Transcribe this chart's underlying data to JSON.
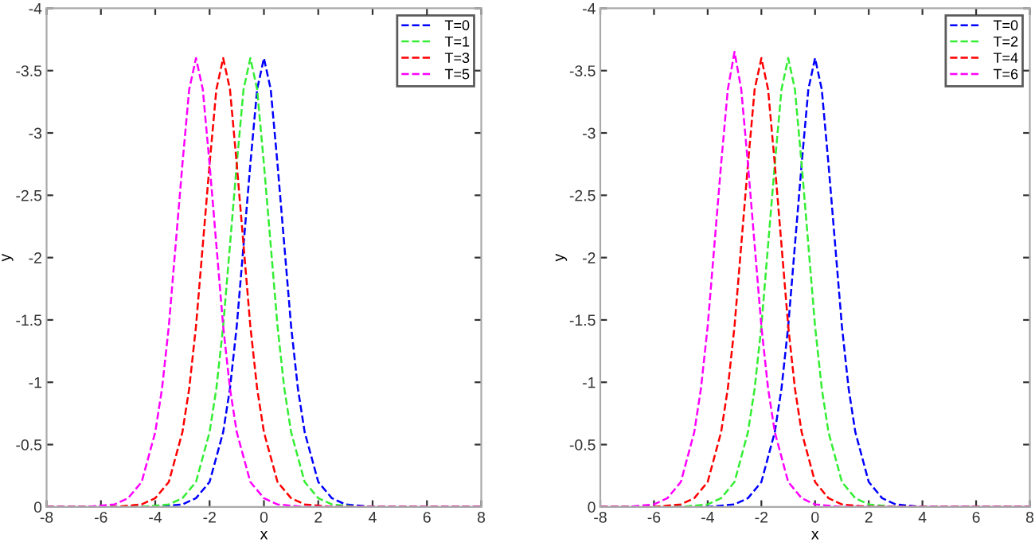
{
  "chart_data": [
    {
      "type": "line",
      "xlabel": "x",
      "ylabel": "y",
      "xlim": [
        -8,
        8
      ],
      "ylim": [
        0,
        -4
      ],
      "xticks": [
        -8,
        -6,
        -4,
        -2,
        0,
        2,
        4,
        6,
        8
      ],
      "yticks": [
        0,
        -0.5,
        -1,
        -1.5,
        -2,
        -2.5,
        -3,
        -3.5,
        -4
      ],
      "legend": "top right",
      "line_style": "dashed",
      "grid": false,
      "series": [
        {
          "name": "T=0",
          "color": "#0000ff",
          "x": [
            -8,
            -4,
            -3,
            -2.5,
            -2,
            -1.5,
            -1.25,
            -1,
            -0.75,
            -0.5,
            -0.25,
            0,
            0.25,
            0.5,
            0.75,
            1,
            1.25,
            1.5,
            2,
            2.5,
            3,
            4,
            8
          ],
          "values": [
            0,
            0,
            -0.02,
            -0.07,
            -0.2,
            -0.6,
            -0.95,
            -1.45,
            -2.1,
            -2.75,
            -3.35,
            -3.6,
            -3.35,
            -2.75,
            -2.1,
            -1.45,
            -0.95,
            -0.6,
            -0.2,
            -0.07,
            -0.02,
            0,
            0
          ]
        },
        {
          "name": "T=1",
          "color": "#33ee33",
          "x": [
            -8,
            -4.5,
            -3.5,
            -3,
            -2.5,
            -2,
            -1.75,
            -1.5,
            -1.25,
            -1,
            -0.75,
            -0.5,
            -0.25,
            0,
            0.25,
            0.5,
            0.75,
            1,
            1.5,
            2,
            2.5,
            3.5,
            8
          ],
          "values": [
            0,
            0,
            -0.02,
            -0.07,
            -0.2,
            -0.6,
            -0.95,
            -1.45,
            -2.1,
            -2.75,
            -3.35,
            -3.6,
            -3.35,
            -2.75,
            -2.1,
            -1.45,
            -0.95,
            -0.6,
            -0.2,
            -0.07,
            -0.02,
            0,
            0
          ]
        },
        {
          "name": "T=3",
          "color": "#ff0000",
          "x": [
            -8,
            -5.5,
            -4.5,
            -4,
            -3.5,
            -3,
            -2.75,
            -2.5,
            -2.25,
            -2,
            -1.75,
            -1.5,
            -1.25,
            -1,
            -0.75,
            -0.5,
            -0.25,
            0,
            0.5,
            1,
            1.5,
            2.5,
            8
          ],
          "values": [
            0,
            0,
            -0.02,
            -0.07,
            -0.2,
            -0.6,
            -0.95,
            -1.45,
            -2.1,
            -2.75,
            -3.35,
            -3.6,
            -3.35,
            -2.75,
            -2.1,
            -1.45,
            -0.95,
            -0.6,
            -0.2,
            -0.07,
            -0.02,
            0,
            0
          ]
        },
        {
          "name": "T=5",
          "color": "#ff00ff",
          "x": [
            -8,
            -6.5,
            -5.5,
            -5,
            -4.5,
            -4,
            -3.75,
            -3.5,
            -3.25,
            -3,
            -2.75,
            -2.5,
            -2.25,
            -2,
            -1.75,
            -1.5,
            -1.25,
            -1,
            -0.5,
            0,
            0.5,
            1.5,
            8
          ],
          "values": [
            0,
            0,
            -0.02,
            -0.07,
            -0.2,
            -0.6,
            -0.95,
            -1.45,
            -2.1,
            -2.75,
            -3.35,
            -3.6,
            -3.35,
            -2.75,
            -2.1,
            -1.45,
            -0.95,
            -0.6,
            -0.2,
            -0.07,
            -0.02,
            0,
            0
          ]
        }
      ]
    },
    {
      "type": "line",
      "xlabel": "x",
      "ylabel": "y",
      "xlim": [
        -8,
        8
      ],
      "ylim": [
        0,
        -4
      ],
      "xticks": [
        -8,
        -6,
        -4,
        -2,
        0,
        2,
        4,
        6,
        8
      ],
      "yticks": [
        0,
        -0.5,
        -1,
        -1.5,
        -2,
        -2.5,
        -3,
        -3.5,
        -4
      ],
      "legend": "top right",
      "line_style": "dashed",
      "grid": false,
      "series": [
        {
          "name": "T=0",
          "color": "#0000ff",
          "x": [
            -8,
            -4,
            -3,
            -2.5,
            -2,
            -1.5,
            -1.25,
            -1,
            -0.75,
            -0.5,
            -0.25,
            0,
            0.25,
            0.5,
            0.75,
            1,
            1.25,
            1.5,
            2,
            2.5,
            3,
            4,
            8
          ],
          "values": [
            0,
            0,
            -0.02,
            -0.07,
            -0.2,
            -0.6,
            -0.95,
            -1.45,
            -2.1,
            -2.75,
            -3.35,
            -3.6,
            -3.35,
            -2.75,
            -2.1,
            -1.45,
            -0.95,
            -0.6,
            -0.2,
            -0.07,
            -0.02,
            0,
            0
          ]
        },
        {
          "name": "T=2",
          "color": "#33ee33",
          "x": [
            -8,
            -5,
            -4,
            -3.5,
            -3,
            -2.5,
            -2.25,
            -2,
            -1.75,
            -1.5,
            -1.25,
            -1,
            -0.75,
            -0.5,
            -0.25,
            0,
            0.25,
            0.5,
            1,
            1.5,
            2,
            3,
            8
          ],
          "values": [
            0,
            0,
            -0.02,
            -0.07,
            -0.2,
            -0.6,
            -0.95,
            -1.45,
            -2.1,
            -2.75,
            -3.35,
            -3.6,
            -3.35,
            -2.75,
            -2.1,
            -1.45,
            -0.95,
            -0.6,
            -0.2,
            -0.07,
            -0.02,
            0,
            0
          ]
        },
        {
          "name": "T=4",
          "color": "#ff0000",
          "x": [
            -8,
            -6,
            -5,
            -4.5,
            -4,
            -3.5,
            -3.25,
            -3,
            -2.75,
            -2.5,
            -2.25,
            -2,
            -1.75,
            -1.5,
            -1.25,
            -1,
            -0.75,
            -0.5,
            0,
            0.5,
            1,
            2,
            8
          ],
          "values": [
            0,
            0,
            -0.02,
            -0.07,
            -0.2,
            -0.6,
            -0.95,
            -1.45,
            -2.1,
            -2.75,
            -3.35,
            -3.6,
            -3.35,
            -2.75,
            -2.1,
            -1.45,
            -0.95,
            -0.6,
            -0.2,
            -0.07,
            -0.02,
            0,
            0
          ]
        },
        {
          "name": "T=6",
          "color": "#ff00ff",
          "x": [
            -8,
            -7,
            -6,
            -5.5,
            -5,
            -4.5,
            -4.25,
            -4,
            -3.75,
            -3.5,
            -3.25,
            -3,
            -2.75,
            -2.5,
            -2.25,
            -2,
            -1.75,
            -1.5,
            -1,
            -0.5,
            0,
            1,
            8
          ],
          "values": [
            0,
            0,
            -0.02,
            -0.07,
            -0.2,
            -0.6,
            -0.95,
            -1.45,
            -2.1,
            -2.75,
            -3.35,
            -3.65,
            -3.35,
            -2.75,
            -2.1,
            -1.45,
            -0.95,
            -0.6,
            -0.2,
            -0.07,
            -0.02,
            0,
            0
          ]
        }
      ]
    }
  ]
}
